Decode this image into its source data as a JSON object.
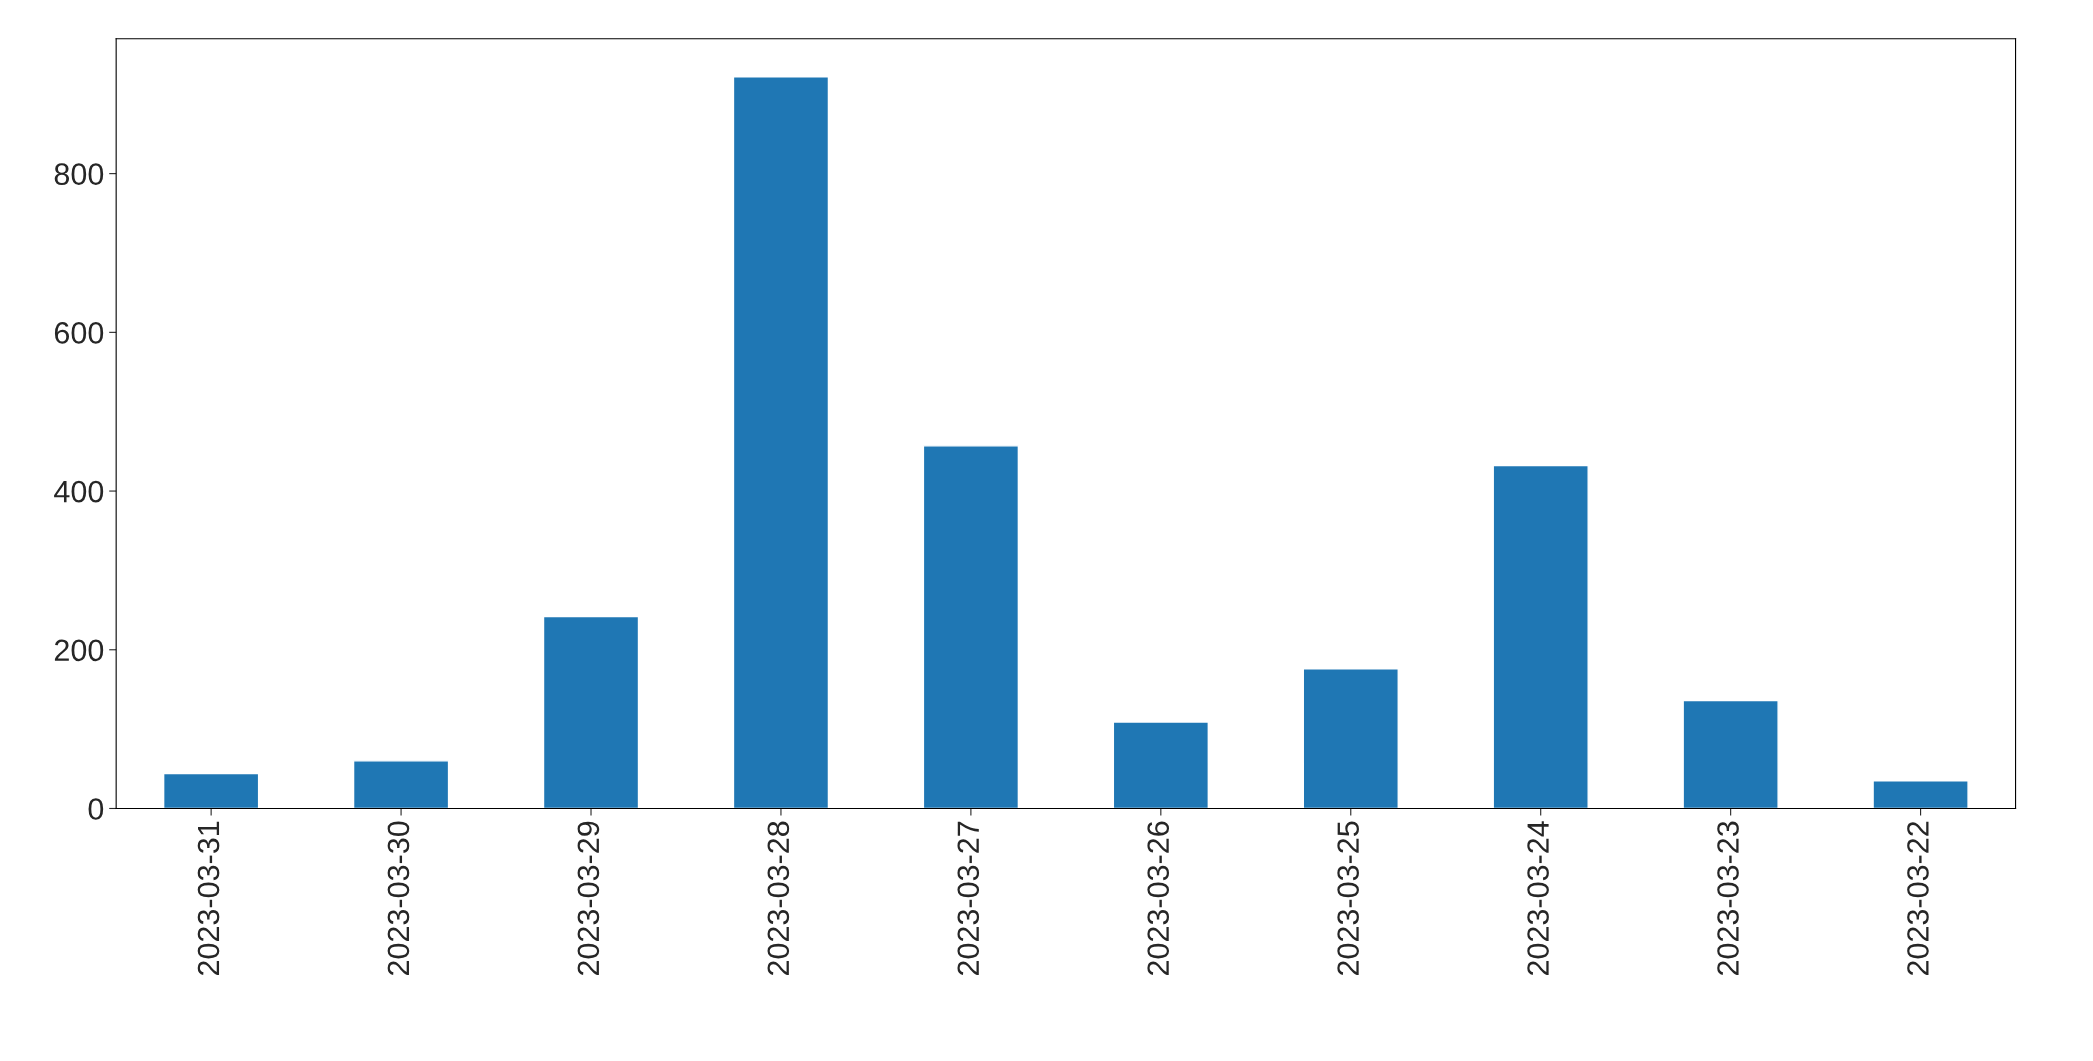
{
  "chart_data": {
    "type": "bar",
    "categories": [
      "2023-03-31",
      "2023-03-30",
      "2023-03-29",
      "2023-03-28",
      "2023-03-27",
      "2023-03-26",
      "2023-03-25",
      "2023-03-24",
      "2023-03-23",
      "2023-03-22"
    ],
    "values": [
      44,
      60,
      242,
      922,
      457,
      109,
      176,
      432,
      136,
      35
    ],
    "color": "#1f77b4",
    "ylim": [
      0,
      970
    ],
    "yticks": [
      0,
      200,
      400,
      600,
      800
    ],
    "grid": false
  }
}
